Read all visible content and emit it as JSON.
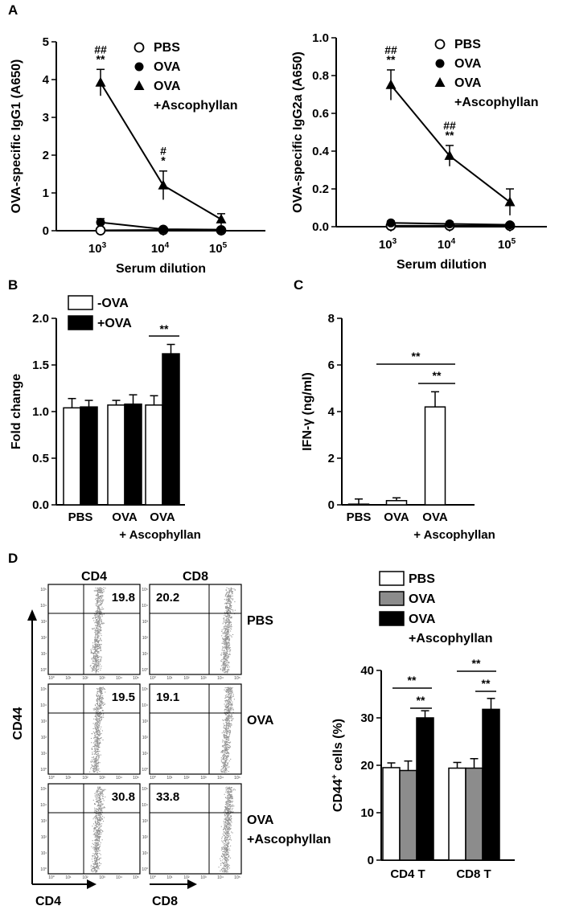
{
  "panel_labels": {
    "a": "A",
    "b": "B",
    "c": "C",
    "d": "D"
  },
  "chart_data": [
    {
      "id": "A1",
      "type": "line",
      "ylabel": "OVA-specific IgG1 (A650)",
      "xlabel": "Serum dilution",
      "xticks": [
        "10",
        "10",
        "10"
      ],
      "xtick_exp": [
        "3",
        "4",
        "5"
      ],
      "ylim": [
        0,
        5
      ],
      "yticks": [
        "0",
        "1",
        "2",
        "3",
        "4",
        "5"
      ],
      "legend": [
        "PBS",
        "OVA",
        "OVA",
        "+Ascophyllan"
      ],
      "series": [
        {
          "name": "PBS",
          "values": [
            0.01,
            0.02,
            0.01
          ],
          "err": [
            0.03,
            0.03,
            0.03
          ]
        },
        {
          "name": "OVA",
          "values": [
            0.22,
            0.04,
            0.03
          ],
          "err": [
            0.1,
            0.03,
            0.03
          ]
        },
        {
          "name": "OVA +Ascophyllan",
          "values": [
            3.92,
            1.2,
            0.3
          ],
          "err": [
            0.35,
            0.38,
            0.15
          ]
        }
      ],
      "annotations": [
        {
          "i": 0,
          "lines": [
            "##",
            "**"
          ]
        },
        {
          "i": 1,
          "lines": [
            "#",
            "*"
          ]
        }
      ]
    },
    {
      "id": "A2",
      "type": "line",
      "ylabel": "OVA-specific IgG2a (A650)",
      "xlabel": "Serum dilution",
      "xticks": [
        "10",
        "10",
        "10"
      ],
      "xtick_exp": [
        "3",
        "4",
        "5"
      ],
      "ylim": [
        0,
        1.0
      ],
      "yticks": [
        "0.0",
        "0.2",
        "0.4",
        "0.6",
        "0.8",
        "1.0"
      ],
      "legend": [
        "PBS",
        "OVA",
        "OVA",
        "+Ascophyllan"
      ],
      "series": [
        {
          "name": "PBS",
          "values": [
            0.005,
            0.005,
            0.005
          ],
          "err": [
            0.006,
            0.006,
            0.006
          ]
        },
        {
          "name": "OVA",
          "values": [
            0.02,
            0.015,
            0.01
          ],
          "err": [
            0.01,
            0.01,
            0.01
          ]
        },
        {
          "name": "OVA +Ascophyllan",
          "values": [
            0.75,
            0.375,
            0.13
          ],
          "err": [
            0.08,
            0.055,
            0.07
          ]
        }
      ],
      "annotations": [
        {
          "i": 0,
          "lines": [
            "##",
            "**"
          ]
        },
        {
          "i": 1,
          "lines": [
            "##",
            "**"
          ]
        }
      ]
    },
    {
      "id": "B",
      "type": "bar",
      "ylabel": "Fold change",
      "categories": [
        "PBS",
        "OVA",
        "OVA"
      ],
      "category_note": "+ Ascophyllan",
      "ylim": [
        0,
        2.0
      ],
      "yticks": [
        "0.0",
        "0.5",
        "1.0",
        "1.5",
        "2.0"
      ],
      "legend": [
        "-OVA",
        "+OVA"
      ],
      "series": [
        {
          "name": "-OVA",
          "values": [
            1.04,
            1.07,
            1.07
          ],
          "err": [
            0.1,
            0.05,
            0.1
          ]
        },
        {
          "name": "+OVA",
          "values": [
            1.05,
            1.08,
            1.62
          ],
          "err": [
            0.07,
            0.1,
            0.1
          ]
        }
      ],
      "sig": "**"
    },
    {
      "id": "C",
      "type": "bar",
      "ylabel": "IFN-γ (ng/ml)",
      "categories": [
        "PBS",
        "OVA",
        "OVA"
      ],
      "category_note": "+ Ascophyllan",
      "ylim": [
        0,
        8
      ],
      "yticks": [
        "0",
        "2",
        "4",
        "6",
        "8"
      ],
      "series": [
        {
          "name": "IFN-γ",
          "values": [
            0.03,
            0.18,
            4.2
          ],
          "err": [
            0.22,
            0.12,
            0.65
          ]
        }
      ],
      "sig": [
        "**",
        "**"
      ]
    },
    {
      "id": "D",
      "type": "bar",
      "ylabel": "CD44",
      "ylabel_sup": "+",
      "ylabel_rest": " cells (%)",
      "categories": [
        "CD4 T",
        "CD8 T"
      ],
      "ylim": [
        0,
        40
      ],
      "yticks": [
        "0",
        "10",
        "20",
        "30",
        "40"
      ],
      "legend": [
        "PBS",
        "OVA",
        "OVA",
        "+Ascophyllan"
      ],
      "series": [
        {
          "name": "PBS",
          "values": [
            19.5,
            19.4
          ],
          "err": [
            1.0,
            1.2
          ]
        },
        {
          "name": "OVA",
          "values": [
            18.9,
            19.4
          ],
          "err": [
            2.0,
            2.0
          ]
        },
        {
          "name": "OVA +Ascophyllan",
          "values": [
            30.0,
            31.8
          ],
          "err": [
            1.5,
            2.3
          ]
        }
      ],
      "sig": [
        "**",
        "**"
      ]
    }
  ],
  "flow": {
    "columns": [
      "CD4",
      "CD8"
    ],
    "rows": [
      {
        "label": "PBS",
        "cd4": "19.8",
        "cd8": "20.2"
      },
      {
        "label": "OVA",
        "cd4": "19.5",
        "cd8": "19.1"
      },
      {
        "label": "OVA",
        "label2": "+Ascophyllan",
        "cd4": "30.8",
        "cd8": "33.8"
      }
    ],
    "yaxis": "CD44",
    "xaxis": [
      "CD4",
      "CD8"
    ],
    "tick_labels": [
      "10⁰",
      "10¹",
      "10²",
      "10³",
      "10⁴",
      "10⁵"
    ]
  },
  "colors": {
    "black": "#000000",
    "white": "#ffffff",
    "gray": "#8c8c8c"
  }
}
